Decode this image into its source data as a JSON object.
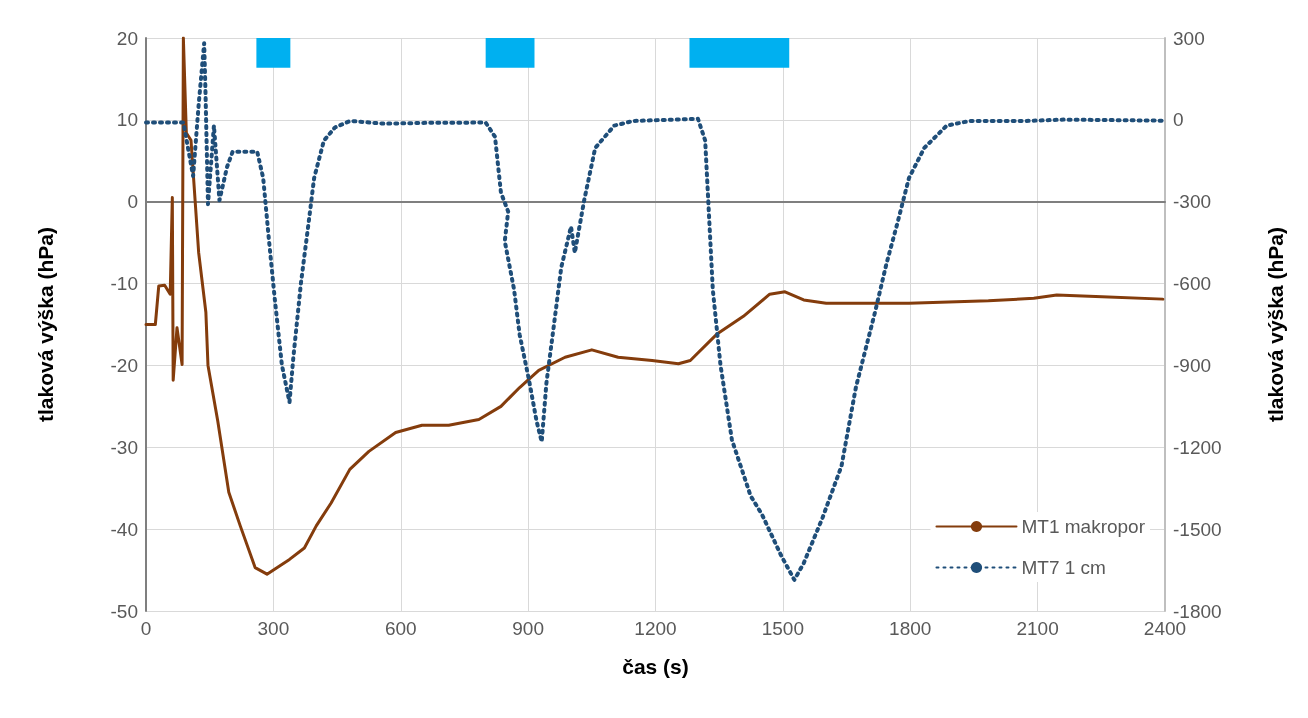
{
  "chart_data": {
    "type": "line",
    "xlabel": "čas (s)",
    "ylabel": "tlaková výška (hPa)",
    "y2label": "tlaková výška (hPa)",
    "xlim": [
      0,
      2400
    ],
    "xticks": [
      0,
      300,
      600,
      900,
      1200,
      1500,
      1800,
      2100,
      2400
    ],
    "ylim": [
      -50,
      20
    ],
    "yticks": [
      -50,
      -40,
      -30,
      -20,
      -10,
      0,
      10,
      20
    ],
    "y2lim": [
      -1800,
      300
    ],
    "y2ticks": [
      -1800,
      -1500,
      -1200,
      -900,
      -600,
      -300,
      0,
      300
    ],
    "grid": true,
    "legend": "bottom right",
    "marker": "none",
    "bands": [
      {
        "axis": "x",
        "from": 260,
        "to": 340,
        "color": "#00b0f0"
      },
      {
        "axis": "x",
        "from": 800,
        "to": 915,
        "color": "#00b0f0"
      },
      {
        "axis": "x",
        "from": 1280,
        "to": 1515,
        "color": "#00b0f0"
      }
    ],
    "series": [
      {
        "name": "MT1 makropor",
        "color": "#843c0c",
        "line_style": "solid",
        "x": [
          0,
          22,
          30,
          44,
          57,
          62,
          64,
          73,
          85,
          88,
          95,
          106,
          124,
          141,
          146,
          169,
          195,
          222,
          257,
          285,
          338,
          373,
          401,
          436,
          480,
          525,
          588,
          650,
          713,
          784,
          836,
          880,
          925,
          987,
          1050,
          1112,
          1192,
          1254,
          1282,
          1344,
          1407,
          1469,
          1505,
          1549,
          1602,
          1674,
          1797,
          1984,
          2091,
          2145,
          2252,
          2395
        ],
        "values": [
          -15,
          -15,
          -10.3,
          -10.2,
          -11.3,
          0.5,
          -21.8,
          -15.4,
          -19.9,
          20,
          8.4,
          7.5,
          -6.2,
          -13.5,
          -20,
          -26.8,
          -35.5,
          -39.6,
          -44.7,
          -45.5,
          -43.7,
          -42.3,
          -39.6,
          -36.8,
          -32.7,
          -30.5,
          -28.2,
          -27.3,
          -27.3,
          -26.6,
          -25,
          -22.7,
          -20.6,
          -19,
          -18.1,
          -19,
          -19.4,
          -19.8,
          -19.4,
          -16.2,
          -14,
          -11.3,
          -11,
          -12,
          -12.4,
          -12.4,
          -12.4,
          -12.1,
          -11.8,
          -11.4,
          -11.6,
          -11.9
        ]
      },
      {
        "name": "MT7 1 cm",
        "color": "#1f4e79",
        "line_style": "dotted",
        "axis": "y2",
        "x": [
          0,
          88,
          111,
          124,
          137,
          140,
          146,
          160,
          173,
          191,
          204,
          262,
          276,
          289,
          303,
          320,
          338,
          347,
          365,
          383,
          396,
          419,
          445,
          481,
          561,
          659,
          784,
          800,
          822,
          836,
          853,
          845,
          867,
          880,
          902,
          920,
          932,
          943,
          960,
          978,
          1001,
          1010,
          1032,
          1058,
          1103,
          1148,
          1300,
          1317,
          1326,
          1335,
          1353,
          1380,
          1424,
          1451,
          1496,
          1527,
          1549,
          1593,
          1638,
          1672,
          1717,
          1744,
          1770,
          1797,
          1833,
          1886,
          1940,
          2073,
          2163,
          2395
        ],
        "values": [
          -10,
          -10,
          -206,
          55,
          281,
          109,
          -309,
          -21,
          -295,
          -172,
          -117,
          -117,
          -213,
          -431,
          -652,
          -898,
          -1035,
          -871,
          -597,
          -377,
          -213,
          -76,
          -28,
          -4,
          -14,
          -11,
          -10,
          -10,
          -62,
          -267,
          -336,
          -445,
          -623,
          -787,
          -953,
          -1105,
          -1180,
          -966,
          -761,
          -541,
          -391,
          -487,
          -295,
          -103,
          -21,
          -4,
          4,
          -76,
          -349,
          -623,
          -898,
          -1173,
          -1378,
          -1447,
          -1597,
          -1686,
          -1625,
          -1460,
          -1269,
          -980,
          -705,
          -527,
          -377,
          -213,
          -103,
          -21,
          -4,
          -4,
          1,
          -3
        ]
      }
    ]
  }
}
